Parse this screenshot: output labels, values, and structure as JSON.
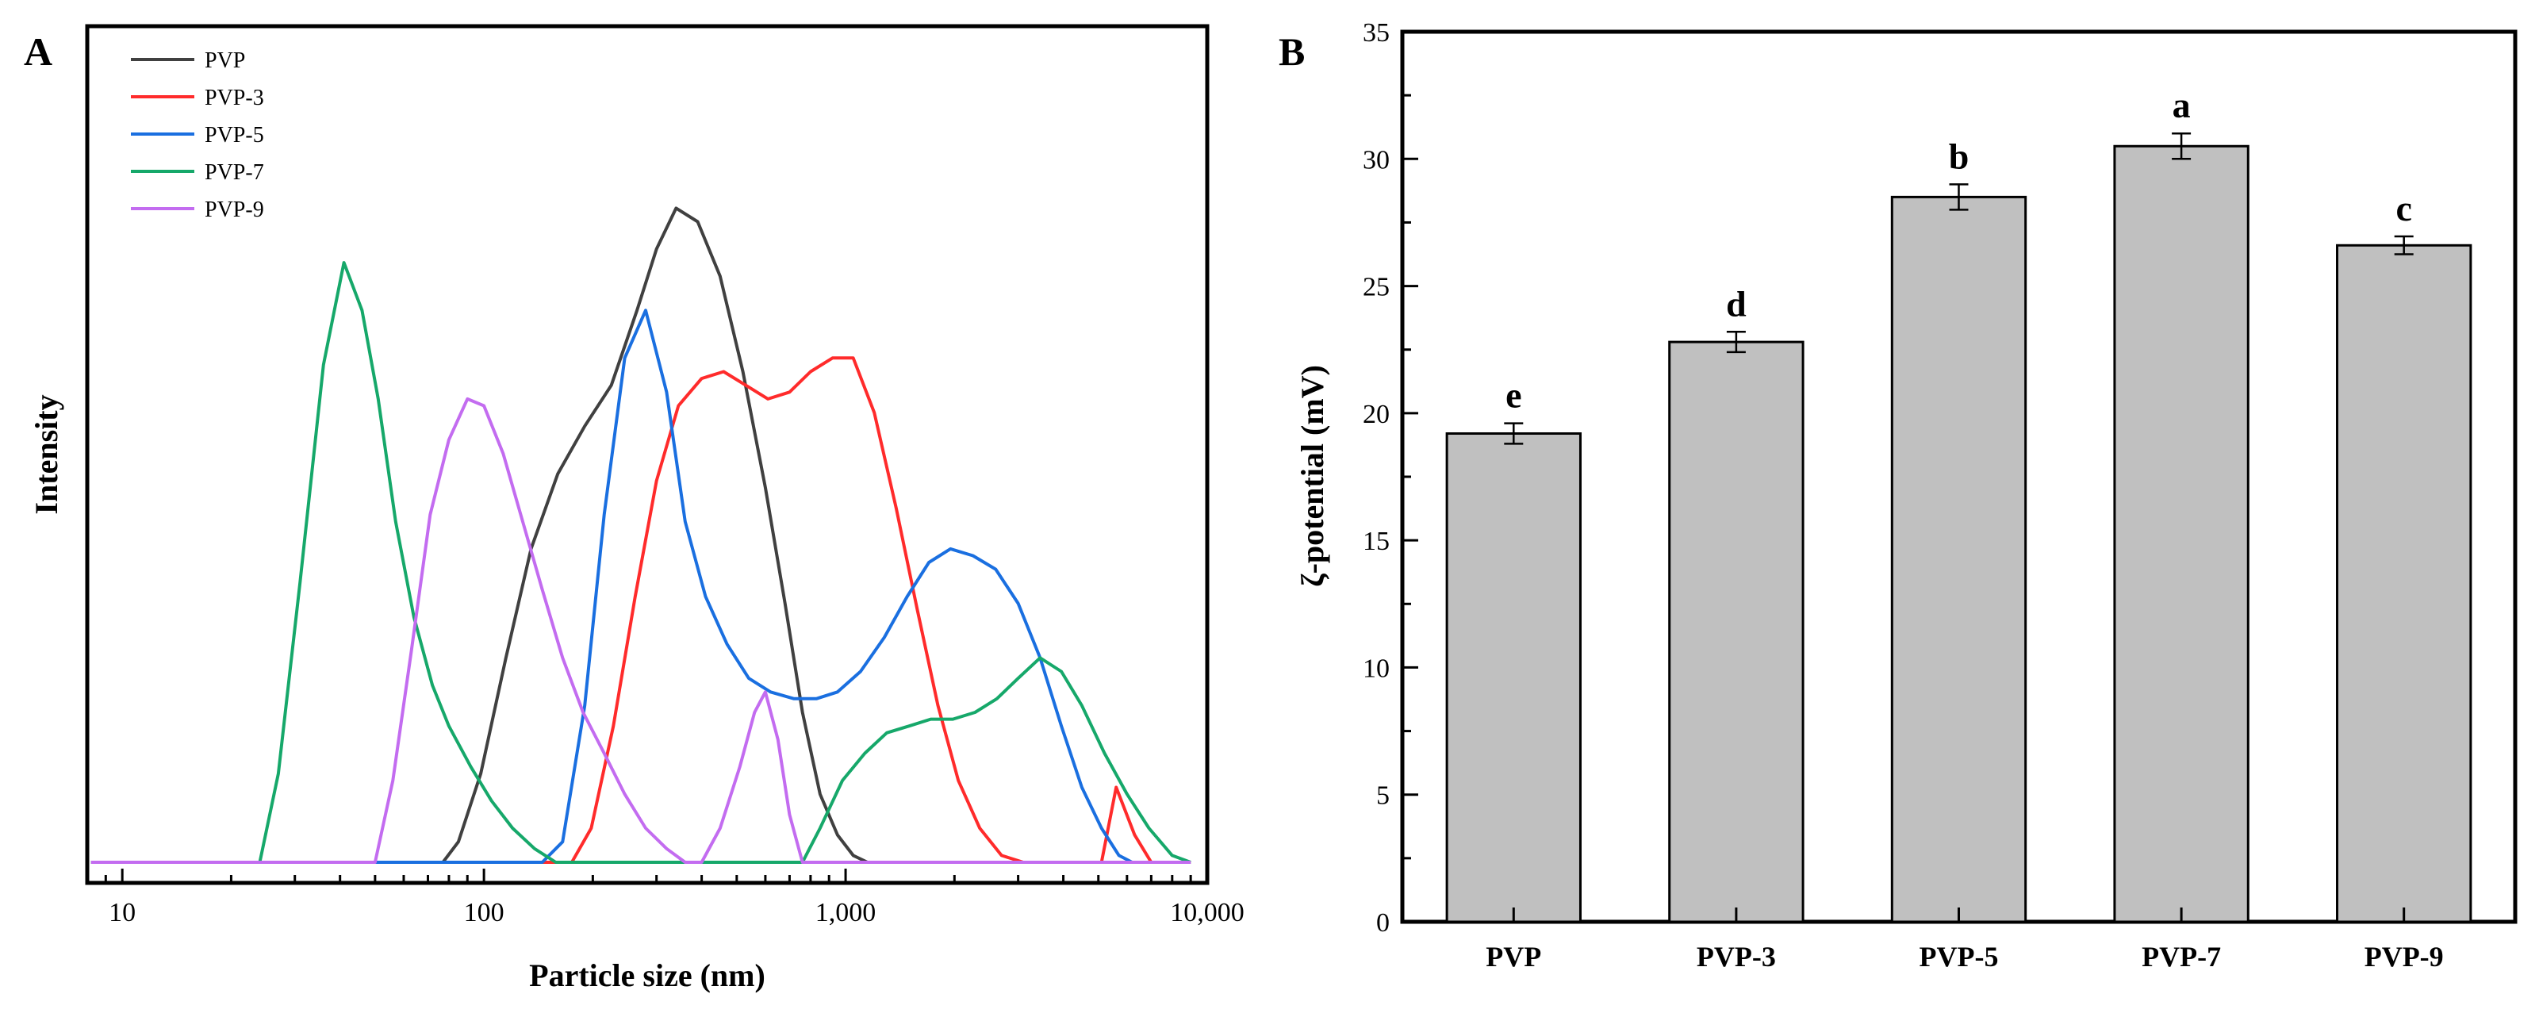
{
  "chart_data": [
    {
      "panel": "A",
      "type": "line",
      "title": "",
      "xlabel": "Particle size (nm)",
      "ylabel": "Intensity",
      "xscale": "log",
      "xlim": [
        8,
        10000
      ],
      "ylim": [
        0,
        1
      ],
      "x_ticks": [
        10,
        100,
        1000,
        10000
      ],
      "x_tick_labels": [
        "10",
        "100",
        "1,000",
        "10,000"
      ],
      "y_ticks": [],
      "grid": false,
      "legend": "top-left",
      "series": [
        {
          "name": "PVP",
          "color": "#404040",
          "points": [
            [
              8.2,
              0.0
            ],
            [
              77,
              0.0
            ],
            [
              85,
              0.03
            ],
            [
              98,
              0.13
            ],
            [
              115,
              0.3
            ],
            [
              135,
              0.46
            ],
            [
              160,
              0.57
            ],
            [
              190,
              0.64
            ],
            [
              225,
              0.7
            ],
            [
              265,
              0.81
            ],
            [
              300,
              0.9
            ],
            [
              340,
              0.96
            ],
            [
              390,
              0.94
            ],
            [
              450,
              0.86
            ],
            [
              520,
              0.72
            ],
            [
              600,
              0.55
            ],
            [
              680,
              0.38
            ],
            [
              760,
              0.22
            ],
            [
              850,
              0.1
            ],
            [
              950,
              0.04
            ],
            [
              1050,
              0.01
            ],
            [
              1150,
              0.0
            ],
            [
              9000,
              0.0
            ]
          ]
        },
        {
          "name": "PVP-3",
          "color": "#ff2b2b",
          "points": [
            [
              8.2,
              0.0
            ],
            [
              175,
              0.0
            ],
            [
              198,
              0.05
            ],
            [
              228,
              0.2
            ],
            [
              262,
              0.39
            ],
            [
              300,
              0.56
            ],
            [
              345,
              0.67
            ],
            [
              400,
              0.71
            ],
            [
              460,
              0.72
            ],
            [
              530,
              0.7
            ],
            [
              610,
              0.68
            ],
            [
              700,
              0.69
            ],
            [
              800,
              0.72
            ],
            [
              920,
              0.74
            ],
            [
              1050,
              0.74
            ],
            [
              1200,
              0.66
            ],
            [
              1380,
              0.52
            ],
            [
              1580,
              0.37
            ],
            [
              1800,
              0.23
            ],
            [
              2050,
              0.12
            ],
            [
              2350,
              0.05
            ],
            [
              2700,
              0.01
            ],
            [
              3100,
              0.0
            ],
            [
              5100,
              0.0
            ],
            [
              5600,
              0.11
            ],
            [
              6300,
              0.04
            ],
            [
              7000,
              0.0
            ],
            [
              9000,
              0.0
            ]
          ]
        },
        {
          "name": "PVP-5",
          "color": "#1a6fe0",
          "points": [
            [
              8.2,
              0.0
            ],
            [
              145,
              0.0
            ],
            [
              165,
              0.03
            ],
            [
              190,
              0.23
            ],
            [
              215,
              0.51
            ],
            [
              245,
              0.74
            ],
            [
              280,
              0.81
            ],
            [
              320,
              0.69
            ],
            [
              360,
              0.5
            ],
            [
              410,
              0.39
            ],
            [
              470,
              0.32
            ],
            [
              540,
              0.27
            ],
            [
              620,
              0.25
            ],
            [
              720,
              0.24
            ],
            [
              830,
              0.24
            ],
            [
              950,
              0.25
            ],
            [
              1100,
              0.28
            ],
            [
              1280,
              0.33
            ],
            [
              1480,
              0.39
            ],
            [
              1700,
              0.44
            ],
            [
              1950,
              0.46
            ],
            [
              2250,
              0.45
            ],
            [
              2600,
              0.43
            ],
            [
              3000,
              0.38
            ],
            [
              3450,
              0.3
            ],
            [
              3950,
              0.2
            ],
            [
              4500,
              0.11
            ],
            [
              5100,
              0.05
            ],
            [
              5700,
              0.01
            ],
            [
              6200,
              0.0
            ],
            [
              9000,
              0.0
            ]
          ]
        },
        {
          "name": "PVP-7",
          "color": "#16a86a",
          "points": [
            [
              8.2,
              0.0
            ],
            [
              24,
              0.0
            ],
            [
              27,
              0.13
            ],
            [
              31,
              0.41
            ],
            [
              36,
              0.73
            ],
            [
              41,
              0.88
            ],
            [
              46,
              0.81
            ],
            [
              51,
              0.68
            ],
            [
              57,
              0.5
            ],
            [
              64,
              0.36
            ],
            [
              72,
              0.26
            ],
            [
              80,
              0.2
            ],
            [
              92,
              0.14
            ],
            [
              105,
              0.09
            ],
            [
              120,
              0.05
            ],
            [
              138,
              0.02
            ],
            [
              158,
              0.0
            ],
            [
              760,
              0.0
            ],
            [
              850,
              0.05
            ],
            [
              980,
              0.12
            ],
            [
              1130,
              0.16
            ],
            [
              1300,
              0.19
            ],
            [
              1500,
              0.2
            ],
            [
              1720,
              0.21
            ],
            [
              1980,
              0.21
            ],
            [
              2280,
              0.22
            ],
            [
              2620,
              0.24
            ],
            [
              3000,
              0.27
            ],
            [
              3450,
              0.3
            ],
            [
              3950,
              0.28
            ],
            [
              4500,
              0.23
            ],
            [
              5200,
              0.16
            ],
            [
              6000,
              0.1
            ],
            [
              6900,
              0.05
            ],
            [
              8000,
              0.01
            ],
            [
              9000,
              0.0
            ]
          ]
        },
        {
          "name": "PVP-9",
          "color": "#c36cf0",
          "points": [
            [
              8.2,
              0.0
            ],
            [
              50,
              0.0
            ],
            [
              56,
              0.12
            ],
            [
              63,
              0.31
            ],
            [
              71,
              0.51
            ],
            [
              80,
              0.62
            ],
            [
              90,
              0.68
            ],
            [
              100,
              0.67
            ],
            [
              113,
              0.6
            ],
            [
              128,
              0.5
            ],
            [
              145,
              0.4
            ],
            [
              165,
              0.3
            ],
            [
              188,
              0.22
            ],
            [
              215,
              0.16
            ],
            [
              245,
              0.1
            ],
            [
              280,
              0.05
            ],
            [
              320,
              0.02
            ],
            [
              360,
              0.0
            ],
            [
              400,
              0.0
            ],
            [
              450,
              0.05
            ],
            [
              510,
              0.14
            ],
            [
              560,
              0.22
            ],
            [
              600,
              0.25
            ],
            [
              650,
              0.18
            ],
            [
              700,
              0.07
            ],
            [
              760,
              0.0
            ],
            [
              9000,
              0.0
            ]
          ]
        }
      ]
    },
    {
      "panel": "B",
      "type": "bar",
      "title": "",
      "xlabel": "",
      "ylabel": "ζ-potential (mV)",
      "ylim": [
        0,
        35
      ],
      "y_ticks": [
        0,
        5,
        10,
        15,
        20,
        25,
        30,
        35
      ],
      "grid": false,
      "categories": [
        "PVP",
        "PVP-3",
        "PVP-5",
        "PVP-7",
        "PVP-9"
      ],
      "values": [
        19.2,
        22.8,
        28.5,
        30.5,
        26.6
      ],
      "errors": [
        0.4,
        0.4,
        0.5,
        0.5,
        0.35
      ],
      "annotations": [
        "e",
        "d",
        "b",
        "a",
        "c"
      ],
      "bar_color": "#c0c0c0"
    }
  ]
}
